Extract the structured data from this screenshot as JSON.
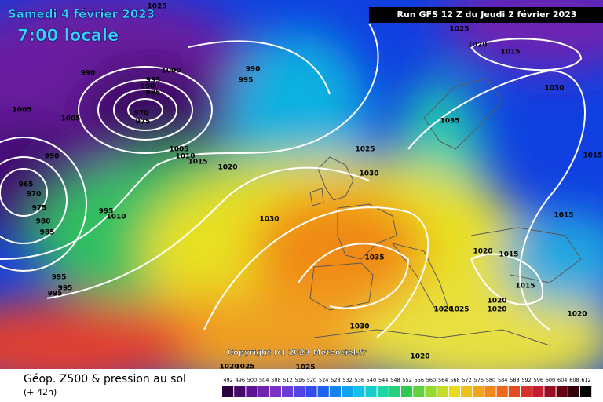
{
  "header": {
    "date": "Samedi 4 février 2023",
    "time": "7:00 locale",
    "run": "Run GFS 12 Z du Jeudi 2 février 2023"
  },
  "copyright": "Copyright (c) 2023 Meteociel.fr",
  "footer": {
    "title": "Géop. Z500 & pression au sol",
    "lead": "(+ 42h)"
  },
  "colorbar": {
    "levels": [
      492,
      496,
      500,
      504,
      508,
      512,
      516,
      520,
      524,
      528,
      532,
      536,
      540,
      544,
      548,
      552,
      556,
      560,
      564,
      568,
      572,
      576,
      580,
      584,
      588,
      592,
      596,
      600,
      604,
      608,
      612
    ]
  },
  "isobar_labels": [
    1025,
    1025,
    1020,
    1015,
    990,
    1000,
    995,
    990,
    985,
    990,
    995,
    1030,
    1005,
    1005,
    970,
    975,
    1035,
    1005,
    1010,
    1015,
    990,
    1025,
    1020,
    1030,
    1015,
    965,
    970,
    975,
    980,
    985,
    995,
    1010,
    1030,
    1015,
    1035,
    1020,
    1015,
    995,
    995,
    995,
    1015,
    1020,
    1020,
    1025,
    1020,
    1020,
    1030,
    1020,
    1025,
    1025,
    1020
  ]
}
